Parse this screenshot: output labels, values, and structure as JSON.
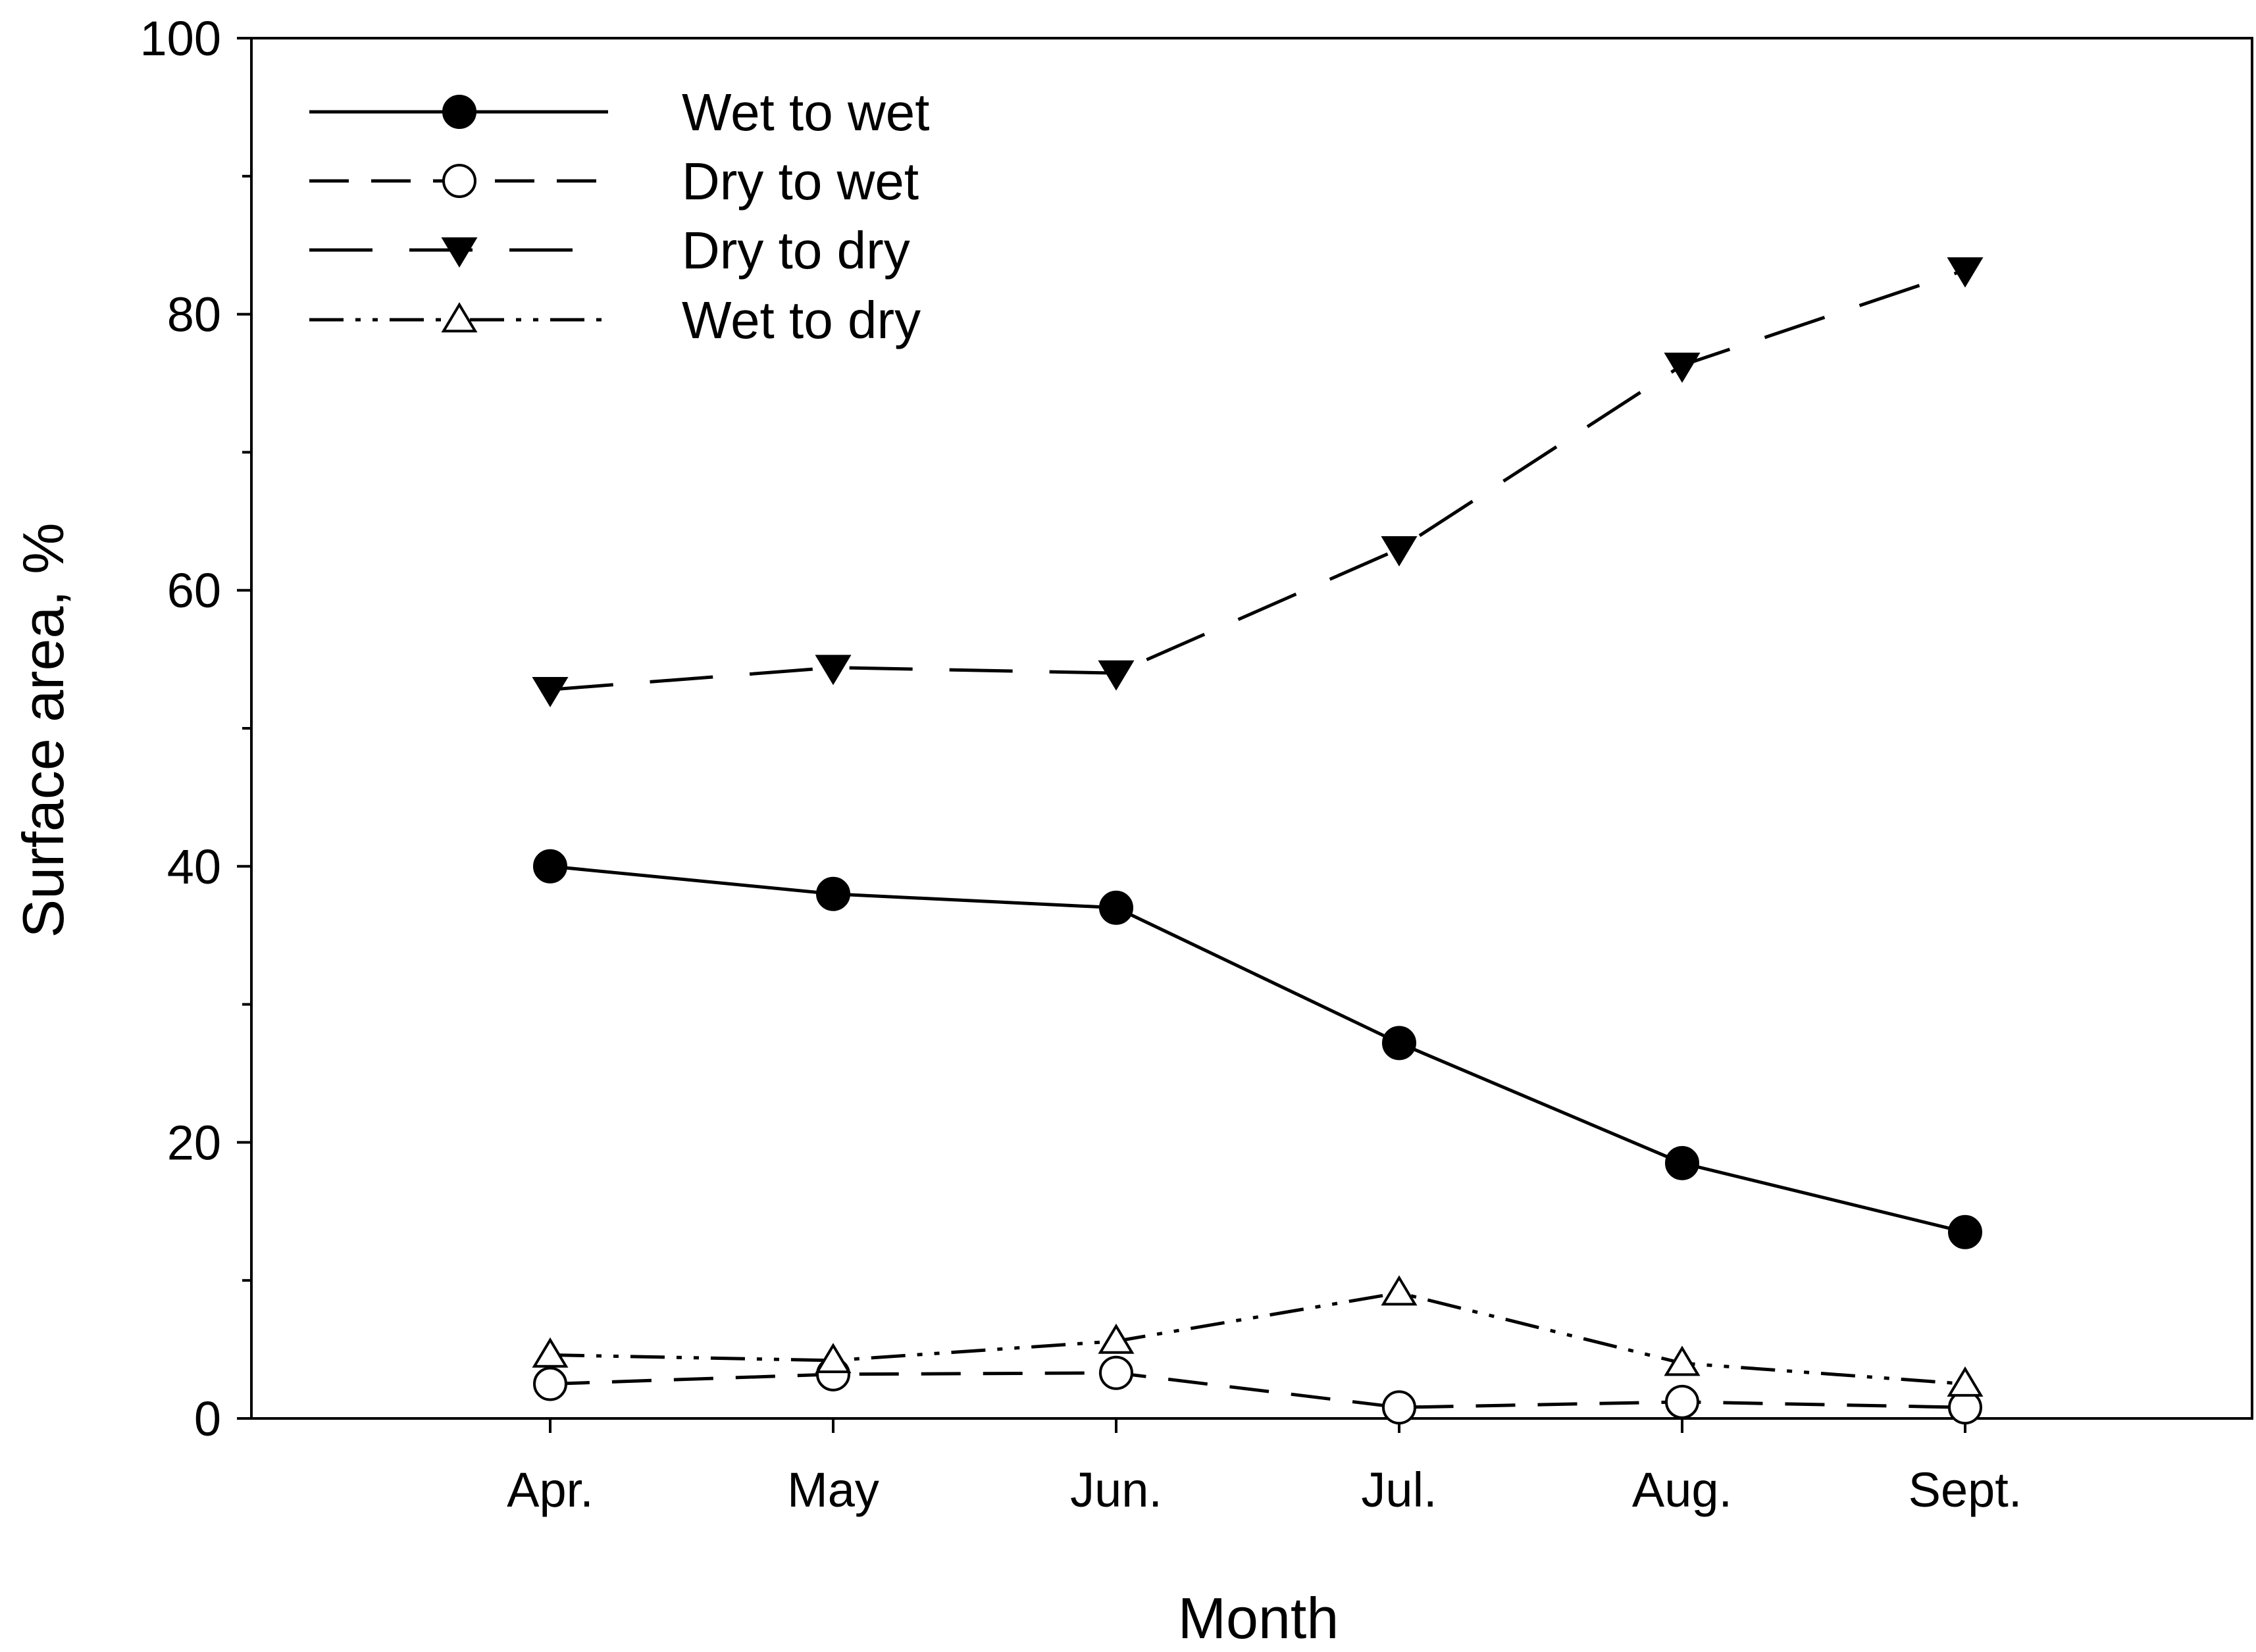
{
  "chart_data": {
    "type": "line",
    "title": "",
    "xlabel": "Month",
    "ylabel": "Surface area, %",
    "categories": [
      "Apr.",
      "May",
      "Jun.",
      "Jul.",
      "Aug.",
      "Sept."
    ],
    "ylim": [
      0,
      100
    ],
    "yticks": [
      0,
      20,
      40,
      60,
      80,
      100
    ],
    "ytick_labels": [
      "0",
      "20",
      "40",
      "60",
      "80",
      "100"
    ],
    "grid": false,
    "legend_position": "top-left",
    "series": [
      {
        "name": "Wet to wet",
        "line_style": "solid",
        "marker": "filled-circle",
        "color": "#000000",
        "values": [
          40.0,
          38.0,
          37.0,
          27.2,
          18.5,
          13.5
        ]
      },
      {
        "name": "Dry to wet",
        "line_style": "dashed",
        "marker": "open-circle",
        "color": "#000000",
        "values": [
          2.5,
          3.2,
          3.3,
          0.8,
          1.2,
          0.8
        ]
      },
      {
        "name": "Dry to dry",
        "line_style": "long-dashed",
        "marker": "filled-triangle-down",
        "color": "#000000",
        "values": [
          52.8,
          54.4,
          54.0,
          63.0,
          76.3,
          83.2
        ]
      },
      {
        "name": "Wet to dry",
        "line_style": "dash-dot-dot",
        "marker": "open-triangle-up",
        "color": "#000000",
        "values": [
          4.6,
          4.2,
          5.6,
          9.1,
          4.0,
          2.5
        ]
      }
    ]
  }
}
